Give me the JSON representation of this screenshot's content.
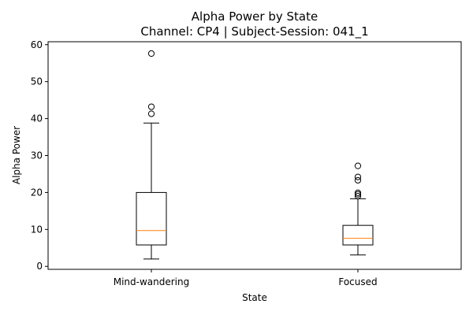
{
  "chart_data": {
    "type": "box",
    "title": "Alpha Power by State",
    "subtitle": "Channel: CP4 | Subject-Session: 041_1",
    "xlabel": "State",
    "ylabel": "Alpha Power",
    "ylim": [
      -0.8,
      60.8
    ],
    "yticks": [
      0,
      10,
      20,
      30,
      40,
      50,
      60
    ],
    "grid": false,
    "categories": [
      "Mind-wandering",
      "Focused"
    ],
    "boxes": [
      {
        "category": "Mind-wandering",
        "whisker_low": 2.0,
        "q1": 5.8,
        "median": 9.7,
        "q3": 20.0,
        "whisker_high": 38.8,
        "outliers": [
          41.3,
          43.2,
          57.6
        ]
      },
      {
        "category": "Focused",
        "whisker_low": 3.1,
        "q1": 5.8,
        "median": 7.6,
        "q3": 11.1,
        "whisker_high": 18.3,
        "outliers": [
          19.0,
          19.5,
          19.9,
          23.3,
          24.2,
          27.2
        ]
      }
    ],
    "colors": {
      "box": "#000000",
      "median": "#ff7f0e",
      "outlier": "#000000"
    }
  }
}
